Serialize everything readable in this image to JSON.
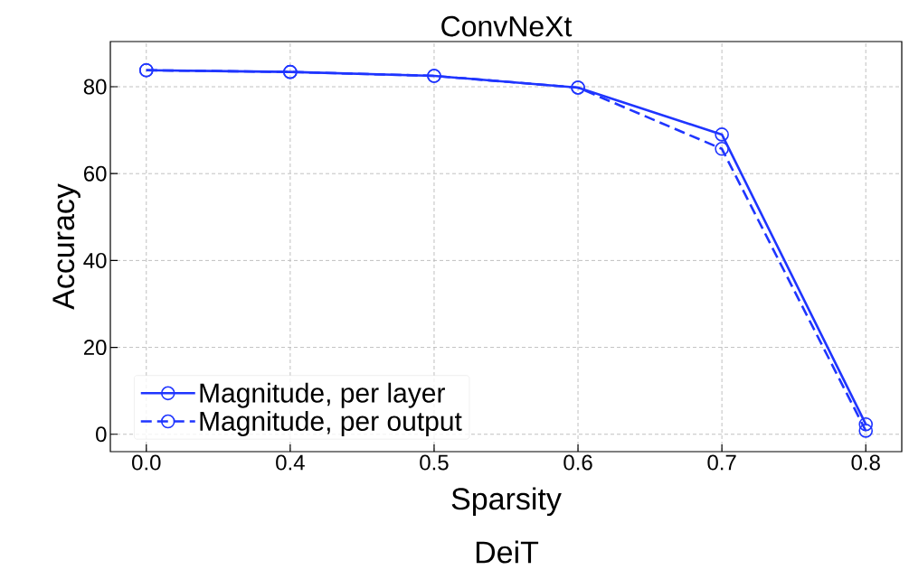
{
  "chart_data": {
    "type": "line",
    "title": "ConvNeXt",
    "xlabel": "Sparsity",
    "ylabel": "Accuracy",
    "annotations": [
      "DeiT"
    ],
    "categories": [
      "0.0",
      "0.4",
      "0.5",
      "0.6",
      "0.7",
      "0.8"
    ],
    "series": [
      {
        "name": "Magnitude, per layer",
        "color": "#1f35ff",
        "line_style": "solid",
        "values": [
          83.8,
          83.4,
          82.5,
          79.8,
          69.0,
          2.3
        ]
      },
      {
        "name": "Magnitude, per output",
        "color": "#1f35ff",
        "line_style": "dashed",
        "values": [
          83.8,
          83.4,
          82.5,
          79.8,
          65.7,
          0.8
        ]
      }
    ],
    "ylim": [
      -4,
      90.4
    ],
    "yticks": [
      0,
      20,
      40,
      60,
      80
    ],
    "grid": true,
    "legend": "bottom left",
    "marker": "circle"
  }
}
